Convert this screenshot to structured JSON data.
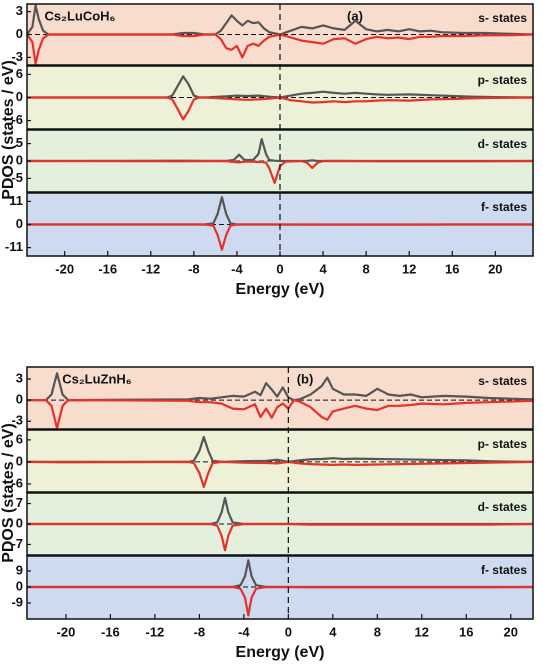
{
  "chart_data": [
    {
      "type": "line",
      "title": "Cs₂LuCoH₆",
      "annotation": "(a)",
      "xlabel": "Energy (eV)",
      "ylabel": "PDOS (states / eV)",
      "xlim": [
        -23.5,
        23.5
      ],
      "xticks": [
        -20,
        -16,
        -12,
        -8,
        -4,
        0,
        4,
        8,
        12,
        16,
        20
      ],
      "panels": [
        {
          "label": "s- states",
          "background": "#f8dccd",
          "ylim": [
            -4,
            4
          ],
          "yticks": [
            3,
            0,
            -3
          ],
          "x": [
            -23.5,
            -23,
            -22.7,
            -22.4,
            -22,
            -21.5,
            -10,
            -9,
            -8,
            -7,
            -6,
            -5.5,
            -5,
            -4.5,
            -4,
            -3.5,
            -3,
            -2.5,
            -2,
            -1.5,
            -1,
            0,
            1,
            2,
            3,
            4,
            5,
            6,
            7,
            8,
            9,
            10,
            11,
            12,
            13,
            14,
            15,
            17,
            19,
            21,
            23.5
          ],
          "series": [
            {
              "color": "#555555",
              "values": [
                0,
                1,
                3.8,
                2,
                0.5,
                0,
                0,
                0.2,
                0.2,
                0,
                0,
                0.5,
                1.5,
                2.5,
                1.8,
                1.2,
                1.8,
                1.5,
                1.6,
                0.8,
                0.3,
                0,
                0.5,
                1,
                0.8,
                1.2,
                0.8,
                0.6,
                1.8,
                0.7,
                0.4,
                0.6,
                0.4,
                0.7,
                0.4,
                0.5,
                0.3,
                0.2,
                0.2,
                0.1,
                0
              ]
            },
            {
              "color": "#e8312a",
              "values": [
                0,
                -1,
                -3.8,
                -2,
                -0.5,
                0,
                0,
                -0.2,
                -0.2,
                0,
                0,
                -0.6,
                -1.8,
                -2,
                -1.5,
                -3,
                -1.5,
                -1.2,
                -1.5,
                -0.8,
                -0.3,
                0,
                -0.4,
                -0.8,
                -1,
                -1.2,
                -0.6,
                -0.5,
                -1.2,
                -0.6,
                -0.3,
                -0.5,
                -0.4,
                -0.6,
                -0.3,
                -0.3,
                -0.2,
                -0.2,
                -0.1,
                -0.1,
                0
              ]
            }
          ]
        },
        {
          "label": "p- states",
          "background": "#eef0d8",
          "ylim": [
            -8.2,
            8.2
          ],
          "yticks": [
            6,
            0,
            -6
          ],
          "x": [
            -23.5,
            -10.5,
            -10,
            -9.5,
            -9,
            -8.5,
            -8,
            -7.5,
            -7,
            -5,
            -4,
            -3,
            -2,
            -1,
            0,
            1,
            2,
            3,
            4,
            5,
            6,
            7,
            8,
            9,
            10,
            12,
            14,
            16,
            18,
            20,
            23.5
          ],
          "series": [
            {
              "color": "#555555",
              "values": [
                0,
                0,
                0.5,
                3,
                5.5,
                3.5,
                0.5,
                0,
                0,
                0.3,
                0.5,
                0.4,
                0.5,
                0.2,
                0,
                0.5,
                1,
                1.2,
                1.5,
                1.2,
                1,
                1.2,
                1,
                0.8,
                0.7,
                0.8,
                0.6,
                0.4,
                0.2,
                0.1,
                0
              ]
            },
            {
              "color": "#e8312a",
              "values": [
                0,
                0,
                -0.5,
                -3,
                -5.7,
                -3.5,
                -0.5,
                0,
                0,
                -0.3,
                -0.5,
                -0.6,
                -0.5,
                -0.3,
                0,
                -0.7,
                -1,
                -1.3,
                -1.2,
                -1,
                -1.2,
                -1,
                -1,
                -0.8,
                -0.7,
                -0.8,
                -0.5,
                -0.4,
                -0.2,
                -0.1,
                0
              ]
            }
          ]
        },
        {
          "label": "d- states",
          "background": "#e4f0dc",
          "ylim": [
            -8.9,
            8.9
          ],
          "yticks": [
            5,
            0,
            -5
          ],
          "x": [
            -23.5,
            -9,
            -5,
            -4.3,
            -3.8,
            -3.3,
            -2.5,
            -2,
            -1.7,
            -1.3,
            -1,
            -0.5,
            0,
            0.5,
            2,
            2.5,
            3,
            3.5,
            4,
            6,
            10,
            14,
            18,
            23.5
          ],
          "series": [
            {
              "color": "#555555",
              "values": [
                0,
                0.1,
                0,
                0.3,
                1.8,
                0.3,
                0.3,
                2,
                6.3,
                2,
                0.3,
                0.1,
                0,
                0,
                0,
                0,
                0.2,
                0,
                0,
                0,
                0,
                0,
                0,
                0
              ]
            },
            {
              "color": "#e8312a",
              "values": [
                0,
                -0.1,
                0,
                -0.3,
                -0.4,
                -0.2,
                -0.2,
                -0.3,
                -0.3,
                -0.5,
                -2,
                -6.3,
                -1.5,
                -0.2,
                0,
                -0.5,
                -2,
                -0.5,
                0,
                0,
                -0.1,
                -0.1,
                -0.1,
                0
              ]
            }
          ]
        },
        {
          "label": "f- states",
          "background": "#cddaf0",
          "ylim": [
            -15,
            15
          ],
          "yticks": [
            11,
            0,
            -11
          ],
          "x": [
            -23.5,
            -7,
            -6.2,
            -5.8,
            -5.4,
            -5,
            -4.6,
            -4,
            0,
            4,
            8,
            12,
            16,
            20,
            23.5
          ],
          "series": [
            {
              "color": "#555555",
              "values": [
                0,
                0,
                0.5,
                5,
                13,
                5,
                0.5,
                0,
                0,
                0,
                0,
                0,
                0,
                0,
                0
              ]
            },
            {
              "color": "#e8312a",
              "values": [
                0,
                0,
                -0.5,
                -5,
                -12,
                -5,
                -0.5,
                0,
                0,
                -0.1,
                -0.1,
                -0.1,
                0,
                0,
                0
              ]
            }
          ]
        }
      ]
    },
    {
      "type": "line",
      "title": "Cs₂LuZnH₆",
      "annotation": "(b)",
      "xlabel": "Energy (eV)",
      "ylabel": "PDOS (states / eV)",
      "xlim": [
        -23.5,
        22
      ],
      "xticks": [
        -20,
        -16,
        -12,
        -8,
        -4,
        0,
        4,
        8,
        12,
        16,
        20
      ],
      "panels": [
        {
          "label": "s- states",
          "background": "#f8dccd",
          "ylim": [
            -4.1,
            4.7
          ],
          "yticks": [
            3,
            0,
            -3
          ],
          "x": [
            -23.5,
            -21.8,
            -21.3,
            -20.8,
            -20.3,
            -19.8,
            -9,
            -8,
            -7,
            -6,
            -5,
            -4,
            -3,
            -2.5,
            -2,
            -1.5,
            -1,
            -0.5,
            0,
            0.5,
            1,
            2,
            3,
            3.5,
            4,
            5,
            6,
            7,
            8,
            9,
            10,
            11,
            12,
            14,
            16,
            18,
            20,
            22
          ],
          "series": [
            {
              "color": "#555555",
              "values": [
                0,
                0,
                0.8,
                3.8,
                0.8,
                0,
                0.1,
                0.3,
                0.2,
                0.4,
                0.6,
                0.5,
                1.2,
                0.7,
                2.4,
                1.5,
                0.5,
                1.8,
                0.4,
                0,
                0.1,
                0.8,
                2,
                3.2,
                1.6,
                0.8,
                0.8,
                0.6,
                1.6,
                0.8,
                0.6,
                0.8,
                0.4,
                0.6,
                0.5,
                0.3,
                0.2,
                0.1
              ]
            },
            {
              "color": "#e8312a",
              "values": [
                0,
                0,
                -0.8,
                -4,
                -0.8,
                0,
                -0.1,
                -0.3,
                -0.3,
                -0.5,
                -1.2,
                -1.3,
                -0.6,
                -2.4,
                -1.2,
                -2.5,
                -1,
                -0.5,
                -1.2,
                0,
                -0.2,
                -1,
                -2.4,
                -2.8,
                -1.6,
                -1.2,
                -0.8,
                -1.2,
                -1.4,
                -0.8,
                -0.8,
                -0.7,
                -0.5,
                -0.6,
                -0.4,
                -0.3,
                -0.2,
                -0.1
              ]
            }
          ]
        },
        {
          "label": "p- states",
          "background": "#eef0d8",
          "ylim": [
            -8.2,
            8.7
          ],
          "yticks": [
            6,
            0,
            -6
          ],
          "x": [
            -23.5,
            -20.5,
            -20,
            -9,
            -8.5,
            -8,
            -7.6,
            -7.2,
            -6.8,
            -6,
            -4,
            -2,
            -1,
            0,
            1,
            2,
            3,
            4,
            5,
            6,
            8,
            10,
            12,
            14,
            16,
            18,
            20,
            22
          ],
          "series": [
            {
              "color": "#555555",
              "values": [
                0,
                0,
                0,
                0,
                0.3,
                3,
                6.8,
                3,
                0.3,
                0,
                0.2,
                0.3,
                0.6,
                0,
                0.4,
                0.7,
                0.8,
                1,
                0.8,
                0.9,
                0.8,
                0.7,
                0.6,
                0.5,
                0.4,
                0.2,
                0.1,
                0
              ]
            },
            {
              "color": "#e8312a",
              "values": [
                0,
                -0.1,
                -0.1,
                0,
                -0.3,
                -3,
                -6.8,
                -3,
                -0.3,
                0,
                -0.2,
                -0.3,
                -0.4,
                0,
                -0.4,
                -0.6,
                -0.7,
                -0.8,
                -0.7,
                -0.8,
                -0.7,
                -0.6,
                -0.5,
                -0.4,
                -0.3,
                -0.2,
                -0.1,
                0
              ]
            }
          ]
        },
        {
          "label": "d- states",
          "background": "#e4f0dc",
          "ylim": [
            -10.6,
            10.6
          ],
          "yticks": [
            7,
            0,
            -7
          ],
          "x": [
            -23.5,
            -7,
            -6.4,
            -6,
            -5.7,
            -5.4,
            -5,
            -4,
            0,
            2,
            6,
            10,
            14,
            18,
            20,
            22
          ],
          "series": [
            {
              "color": "#555555",
              "values": [
                0,
                0,
                0.5,
                4,
                8.9,
                4,
                0.5,
                0,
                0,
                0,
                0,
                0,
                0,
                0,
                0,
                0
              ]
            },
            {
              "color": "#e8312a",
              "values": [
                0,
                0,
                -0.5,
                -4,
                -9,
                -4,
                -0.5,
                0,
                0,
                -0.2,
                -0.2,
                -0.2,
                -0.2,
                -0.2,
                -0.1,
                0
              ]
            }
          ]
        },
        {
          "label": "f- states",
          "background": "#cddaf0",
          "ylim": [
            -18,
            17.4
          ],
          "yticks": [
            9,
            0,
            -9
          ],
          "x": [
            -23.5,
            -5,
            -4.3,
            -3.9,
            -3.6,
            -3.3,
            -2.9,
            -2,
            0,
            2,
            6,
            10,
            14,
            18,
            20,
            22
          ],
          "series": [
            {
              "color": "#555555",
              "values": [
                0,
                0,
                1,
                6,
                15,
                6,
                1,
                0,
                0,
                0,
                0,
                0,
                0,
                0,
                0,
                0
              ]
            },
            {
              "color": "#e8312a",
              "values": [
                0,
                0,
                -1,
                -6,
                -16,
                -6,
                -1,
                0,
                0,
                -0.2,
                -0.2,
                -0.2,
                -0.2,
                -0.2,
                -0.1,
                0
              ]
            }
          ]
        }
      ]
    }
  ]
}
